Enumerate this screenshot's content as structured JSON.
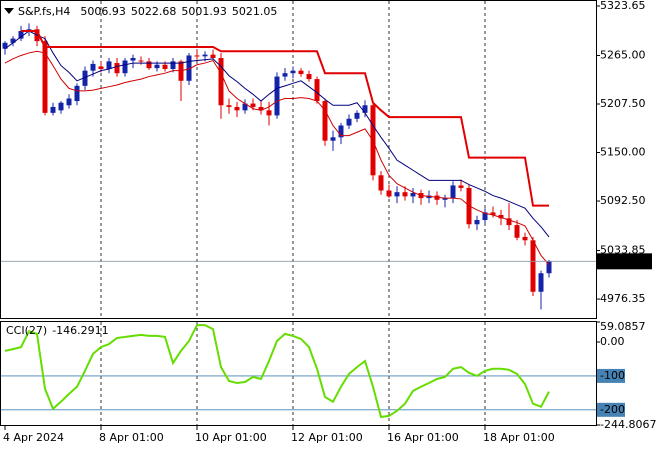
{
  "chart_data": [
    {
      "type": "candlestick",
      "title": "S&P.fs,H4",
      "categories": [
        "4 Apr 2024",
        null,
        null,
        null,
        null,
        null,
        null,
        null,
        null,
        null,
        null,
        null,
        "8 Apr 01:00",
        null,
        null,
        null,
        null,
        null,
        null,
        null,
        null,
        null,
        null,
        null,
        "10 Apr 01:00",
        null,
        null,
        null,
        null,
        null,
        null,
        null,
        null,
        null,
        null,
        null,
        "12 Apr 01:00",
        null,
        null,
        null,
        null,
        null,
        null,
        null,
        null,
        null,
        null,
        null,
        "16 Apr 01:00",
        null,
        null,
        null,
        null,
        null,
        null,
        null,
        null,
        null,
        null,
        null,
        "18 Apr 01:00",
        null,
        null,
        null,
        null,
        null,
        null,
        null,
        null
      ],
      "open": [
        5273,
        5280,
        5285,
        5294,
        5296,
        5282,
        5197,
        5200,
        5206,
        5211,
        5229,
        5247,
        5252,
        5249,
        5256,
        5244,
        5259,
        5259,
        5258,
        5250,
        5254,
        5249,
        5258,
        5235,
        5265,
        5264,
        5266,
        5262,
        5206,
        5204,
        5200,
        5208,
        5204,
        5200,
        5194,
        5240,
        5244,
        5247,
        5243,
        5237,
        5211,
        5164,
        5168,
        5182,
        5190,
        5197,
        5206,
        5123,
        5105,
        5098,
        5103,
        5098,
        5102,
        5096,
        5099,
        5094,
        5096,
        5111,
        5108,
        5065,
        5070,
        5079,
        5076,
        5072,
        5064,
        5050,
        5046,
        4985,
        5006.93
      ],
      "high": [
        5282,
        5288,
        5300,
        5303,
        5300,
        5288,
        5209,
        5211,
        5219,
        5232,
        5252,
        5259,
        5258,
        5262,
        5262,
        5262,
        5266,
        5264,
        5262,
        5258,
        5258,
        5262,
        5260,
        5268,
        5272,
        5270,
        5272,
        5268,
        5214,
        5210,
        5213,
        5214,
        5212,
        5210,
        5245,
        5250,
        5252,
        5250,
        5247,
        5240,
        5214,
        5176,
        5185,
        5195,
        5200,
        5212,
        5210,
        5128,
        5112,
        5110,
        5110,
        5108,
        5106,
        5105,
        5104,
        5100,
        5116,
        5118,
        5112,
        5075,
        5084,
        5086,
        5082,
        5090,
        5070,
        5055,
        5050,
        5010,
        5022.68
      ],
      "low": [
        5266,
        5276,
        5282,
        5288,
        5276,
        5194,
        5194,
        5196,
        5202,
        5206,
        5224,
        5240,
        5245,
        5244,
        5240,
        5240,
        5250,
        5254,
        5248,
        5246,
        5246,
        5245,
        5211,
        5230,
        5260,
        5258,
        5260,
        5190,
        5196,
        5192,
        5196,
        5200,
        5195,
        5182,
        5190,
        5235,
        5238,
        5240,
        5234,
        5208,
        5158,
        5152,
        5160,
        5178,
        5186,
        5192,
        5117,
        5100,
        5096,
        5090,
        5093,
        5090,
        5088,
        5090,
        5088,
        5085,
        5090,
        5104,
        5060,
        5058,
        5066,
        5073,
        5064,
        5058,
        5046,
        5040,
        4980,
        4964,
        5001.93
      ],
      "close": [
        5280,
        5285,
        5294,
        5296,
        5282,
        5197,
        5204,
        5209,
        5214,
        5229,
        5247,
        5255,
        5249,
        5258,
        5244,
        5259,
        5262,
        5258,
        5250,
        5254,
        5249,
        5258,
        5235,
        5265,
        5264,
        5266,
        5262,
        5206,
        5204,
        5200,
        5208,
        5204,
        5200,
        5194,
        5240,
        5244,
        5247,
        5243,
        5237,
        5211,
        5164,
        5168,
        5182,
        5190,
        5197,
        5206,
        5123,
        5105,
        5098,
        5103,
        5098,
        5102,
        5096,
        5099,
        5094,
        5096,
        5111,
        5108,
        5065,
        5070,
        5079,
        5076,
        5072,
        5064,
        5049,
        5046,
        4985,
        5006.93,
        5021.05
      ],
      "up_color": "#1424a8",
      "down_color": "#e00000",
      "lines": [
        {
          "color": "#000080",
          "width": 1,
          "values": [
            5273,
            5280,
            5287,
            5294,
            5289,
            5285,
            5268,
            5253,
            5245,
            5235,
            5239,
            5243,
            5247,
            5249,
            5252,
            5254,
            5256,
            5256,
            5256,
            5256,
            5256,
            5256,
            5256,
            5258,
            5259,
            5260,
            5261,
            5252,
            5241,
            5234,
            5226,
            5219,
            5211,
            5219,
            5226,
            5229,
            5232,
            5235,
            5228,
            5221,
            5213,
            5206,
            5206,
            5206,
            5209,
            5197,
            5182,
            5168,
            5155,
            5141,
            5135,
            5129,
            5123,
            5117,
            5117,
            5117,
            5117,
            5117,
            5112,
            5108,
            5104,
            5099,
            5096,
            5092,
            5088,
            5084,
            5072,
            5062,
            5050
          ]
        },
        {
          "color": "#d00000",
          "width": 1,
          "values": [
            5256,
            5261,
            5265,
            5268,
            5270,
            5268,
            5253,
            5237,
            5226,
            5223,
            5223,
            5224,
            5226,
            5228,
            5230,
            5233,
            5235,
            5237,
            5240,
            5242,
            5244,
            5247,
            5247,
            5249,
            5254,
            5256,
            5259,
            5244,
            5223,
            5214,
            5208,
            5202,
            5200,
            5204,
            5211,
            5214,
            5214,
            5215,
            5214,
            5211,
            5200,
            5182,
            5170,
            5170,
            5174,
            5178,
            5164,
            5141,
            5123,
            5113,
            5108,
            5103,
            5099,
            5098,
            5097,
            5096,
            5096,
            5095,
            5087,
            5082,
            5078,
            5076,
            5073,
            5070,
            5067,
            5063,
            5046,
            5028,
            5017
          ]
        },
        {
          "color": "#e00000",
          "width": 2,
          "values": [
            null,
            null,
            5294,
            5294,
            5294,
            5275,
            5275,
            5275,
            5275,
            5275,
            5275,
            5275,
            5275,
            5275,
            5275,
            5275,
            5275,
            5275,
            5275,
            5275,
            5275,
            5275,
            5275,
            5275,
            5275,
            5275,
            5275,
            5270,
            5270,
            5270,
            5270,
            5270,
            5270,
            5270,
            5270,
            5270,
            5270,
            5270,
            5270,
            5270,
            5244,
            5244,
            5244,
            5244,
            5244,
            5244,
            5209,
            5200,
            5192,
            5192,
            5192,
            5192,
            5192,
            5192,
            5192,
            5192,
            5192,
            5192,
            5144,
            5144,
            5144,
            5144,
            5144,
            5144,
            5144,
            5144,
            5087,
            5087,
            5087
          ]
        }
      ],
      "ylim": [
        4953.9,
        5329.55
      ],
      "yticks": [
        5323.65,
        {
          "value": 5265,
          "label": "5265.00"
        },
        {
          "value": 5207.5,
          "label": "5207.50"
        },
        {
          "value": 5150,
          "label": "5150.00"
        },
        {
          "value": 5092.5,
          "label": "5092.50"
        },
        5033.85,
        4976.35
      ],
      "grid": true
    },
    {
      "type": "line",
      "title": "CCI(27)",
      "color": "#66dd00",
      "values": [
        -26,
        -21,
        -15,
        32,
        24,
        -138,
        -197,
        -176,
        -153,
        -132,
        -85,
        -35,
        -15,
        -6,
        12,
        15,
        18,
        21,
        18,
        18,
        15,
        -62,
        -26,
        3,
        50,
        50,
        38,
        -74,
        -115,
        -121,
        -118,
        -103,
        -109,
        -56,
        3,
        24,
        18,
        9,
        -15,
        -79,
        -162,
        -176,
        -132,
        -94,
        -74,
        -56,
        -132,
        -221,
        -218,
        -203,
        -182,
        -144,
        -132,
        -121,
        -109,
        -103,
        -79,
        -74,
        -91,
        -100,
        -85,
        -79,
        -79,
        -82,
        -94,
        -124,
        -182,
        -191,
        -146.2911
      ],
      "ylim": [
        -244.8067,
        59.0857
      ],
      "yticks": [
        59.0857,
        {
          "value": 0,
          "label": "0.00"
        },
        -100,
        -200,
        -244.8067
      ],
      "levels": [
        -100,
        -200
      ],
      "level_color": "#4682b4"
    }
  ]
}
